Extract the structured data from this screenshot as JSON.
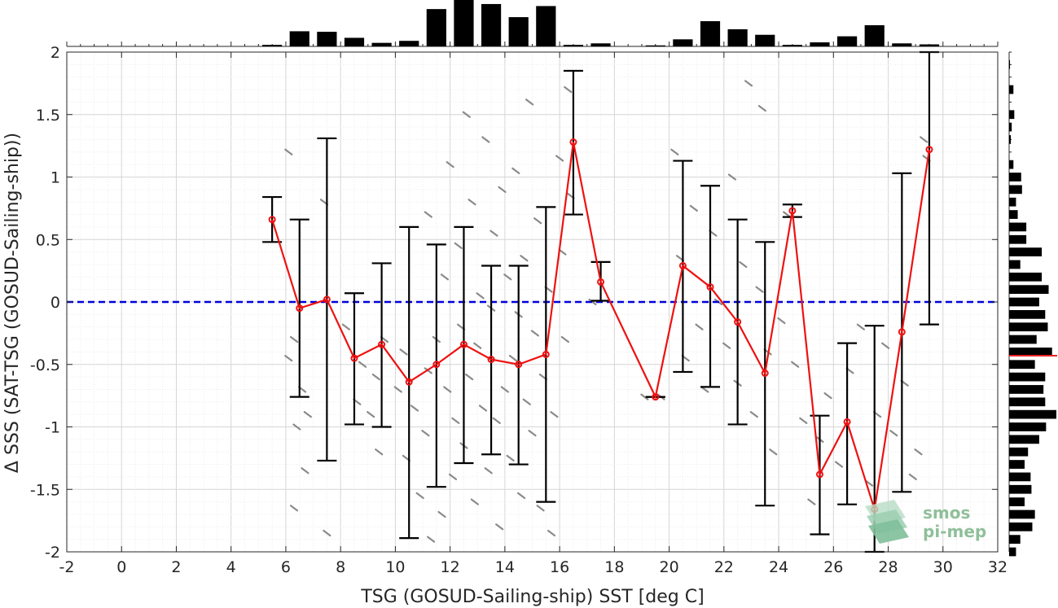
{
  "chart_data": {
    "type": "line",
    "xlabel": "TSG (GOSUD-Sailing-ship) SST [deg C]",
    "ylabel": "Δ SSS (SAT-TSG (GOSUD-Sailing-ship))",
    "xlim": [
      -2,
      32
    ],
    "ylim": [
      -2,
      2
    ],
    "xticks": [
      -2,
      0,
      2,
      4,
      6,
      8,
      10,
      12,
      14,
      16,
      18,
      20,
      22,
      24,
      26,
      28,
      30,
      32
    ],
    "yticks": [
      2,
      1.5,
      1,
      0.5,
      0,
      -0.5,
      -1,
      -1.5,
      -2
    ],
    "xtick_labels": [
      "-2",
      "0",
      "2",
      "4",
      "6",
      "8",
      "10",
      "12",
      "14",
      "16",
      "18",
      "20",
      "22",
      "24",
      "26",
      "28",
      "30",
      "32"
    ],
    "ytick_labels": [
      "2",
      "1.5",
      "1",
      "0.5",
      "0",
      "-0.5",
      "-1",
      "-1.5",
      "-2"
    ],
    "grid": true,
    "reference_line": {
      "y": 0,
      "style": "dashed",
      "color": "#0000dd"
    },
    "series": [
      {
        "color": "#ee1111",
        "x": [
          5.5,
          6.5,
          7.5,
          8.5,
          9.5,
          10.5,
          11.5,
          12.5,
          13.5,
          14.5,
          15.5,
          16.5,
          17.5,
          19.5,
          20.5,
          21.5,
          22.5,
          23.5,
          24.5,
          25.5,
          26.5,
          27.5,
          28.5,
          29.5
        ],
        "y": [
          0.66,
          -0.05,
          0.02,
          -0.45,
          -0.34,
          -0.64,
          -0.5,
          -0.34,
          -0.46,
          -0.5,
          -0.42,
          1.28,
          0.16,
          -0.76,
          0.29,
          0.12,
          -0.16,
          -0.57,
          0.73,
          -1.38,
          -0.96,
          -1.66,
          -0.24,
          1.22
        ],
        "err_low": [
          0.48,
          -0.76,
          -1.27,
          -0.98,
          -1.0,
          -1.89,
          -1.48,
          -1.29,
          -1.22,
          -1.3,
          -1.6,
          0.7,
          0.01,
          -0.76,
          -0.56,
          -0.68,
          -0.98,
          -1.63,
          0.68,
          -1.86,
          -1.62,
          -2.0,
          -1.52,
          -0.18
        ],
        "err_high": [
          0.84,
          0.66,
          1.31,
          0.07,
          0.31,
          0.6,
          0.46,
          0.6,
          0.29,
          0.29,
          0.76,
          1.85,
          0.32,
          -0.76,
          1.13,
          0.93,
          0.66,
          0.48,
          0.78,
          -0.91,
          -0.33,
          -0.19,
          1.03,
          2.0
        ]
      }
    ],
    "scatter_points": [
      [
        6.1,
        1.2
      ],
      [
        6.3,
        -0.3
      ],
      [
        6.1,
        -0.45
      ],
      [
        6.6,
        -0.7
      ],
      [
        6.8,
        -0.9
      ],
      [
        6.4,
        -1.0
      ],
      [
        6.7,
        -1.35
      ],
      [
        6.3,
        -1.65
      ],
      [
        7.4,
        0.8
      ],
      [
        7.5,
        -1.85
      ],
      [
        8.2,
        -0.2
      ],
      [
        8.6,
        -0.8
      ],
      [
        8.8,
        -0.5
      ],
      [
        9.1,
        -0.9
      ],
      [
        9.3,
        -0.6
      ],
      [
        9.4,
        -1.2
      ],
      [
        9.6,
        -0.3
      ],
      [
        10.1,
        -0.7
      ],
      [
        10.3,
        -0.4
      ],
      [
        10.4,
        -1.25
      ],
      [
        10.7,
        -0.85
      ],
      [
        10.9,
        -1.55
      ],
      [
        11.1,
        -1.05
      ],
      [
        11.2,
        -0.55
      ],
      [
        11.2,
        0.7
      ],
      [
        11.3,
        -1.9
      ],
      [
        11.5,
        -0.3
      ],
      [
        11.7,
        -1.7
      ],
      [
        11.8,
        0.2
      ],
      [
        11.9,
        -0.7
      ],
      [
        12.0,
        1.1
      ],
      [
        12.1,
        -1.4
      ],
      [
        12.2,
        -0.95
      ],
      [
        12.3,
        0.45
      ],
      [
        12.4,
        -0.2
      ],
      [
        12.5,
        -1.15
      ],
      [
        12.6,
        1.5
      ],
      [
        12.7,
        -0.6
      ],
      [
        12.8,
        0.8
      ],
      [
        12.9,
        -1.6
      ],
      [
        13.0,
        -0.35
      ],
      [
        13.1,
        0.05
      ],
      [
        13.2,
        -0.85
      ],
      [
        13.3,
        1.3
      ],
      [
        13.4,
        -1.35
      ],
      [
        13.5,
        -0.05
      ],
      [
        13.6,
        0.55
      ],
      [
        13.7,
        -0.95
      ],
      [
        13.8,
        -1.8
      ],
      [
        13.9,
        0.9
      ],
      [
        14.0,
        -0.7
      ],
      [
        14.1,
        0.2
      ],
      [
        14.2,
        -1.25
      ],
      [
        14.3,
        -0.45
      ],
      [
        14.4,
        1.05
      ],
      [
        14.5,
        -0.1
      ],
      [
        14.6,
        -1.55
      ],
      [
        14.7,
        0.35
      ],
      [
        14.8,
        -0.8
      ],
      [
        14.9,
        1.6
      ],
      [
        15.0,
        -1.05
      ],
      [
        15.1,
        -0.25
      ],
      [
        15.2,
        0.65
      ],
      [
        15.3,
        -1.65
      ],
      [
        15.4,
        -0.6
      ],
      [
        15.6,
        0.1
      ],
      [
        15.7,
        -1.85
      ],
      [
        15.8,
        -0.9
      ],
      [
        16.0,
        1.15
      ],
      [
        16.1,
        0.4
      ],
      [
        16.2,
        -0.3
      ],
      [
        16.3,
        1.7
      ],
      [
        16.4,
        0.85
      ],
      [
        17.2,
        0.0
      ],
      [
        19.1,
        -0.76
      ],
      [
        19.7,
        -0.76
      ],
      [
        20.2,
        1.2
      ],
      [
        20.4,
        0.35
      ],
      [
        20.6,
        -0.45
      ],
      [
        20.9,
        0.75
      ],
      [
        21.1,
        -0.2
      ],
      [
        21.3,
        -0.7
      ],
      [
        21.6,
        0.55
      ],
      [
        21.8,
        0.0
      ],
      [
        22.1,
        -0.35
      ],
      [
        22.3,
        1.0
      ],
      [
        22.5,
        -0.65
      ],
      [
        22.7,
        0.3
      ],
      [
        22.9,
        1.75
      ],
      [
        23.1,
        -0.9
      ],
      [
        23.3,
        0.1
      ],
      [
        23.4,
        1.55
      ],
      [
        23.6,
        -0.4
      ],
      [
        23.8,
        -1.2
      ],
      [
        24.1,
        -0.15
      ],
      [
        24.3,
        0.7
      ],
      [
        24.6,
        -0.5
      ],
      [
        24.9,
        -0.95
      ],
      [
        25.2,
        -1.6
      ],
      [
        25.5,
        -1.1
      ],
      [
        25.8,
        -0.75
      ],
      [
        26.2,
        -1.3
      ],
      [
        26.6,
        -0.55
      ],
      [
        27.0,
        -0.2
      ],
      [
        27.3,
        -1.45
      ],
      [
        27.6,
        -0.9
      ],
      [
        27.9,
        -0.35
      ],
      [
        28.2,
        -1.05
      ],
      [
        28.6,
        -0.65
      ],
      [
        28.9,
        -1.4
      ],
      [
        29.1,
        -1.2
      ],
      [
        29.3,
        1.3
      ],
      [
        29.4,
        1.15
      ]
    ],
    "top_histogram": {
      "bin_centers": [
        5.5,
        6.5,
        7.5,
        8.5,
        9.5,
        10.5,
        11.5,
        12.5,
        13.5,
        14.5,
        15.5,
        16.5,
        17.5,
        19.5,
        20.5,
        21.5,
        22.5,
        23.5,
        24.5,
        25.5,
        26.5,
        27.5,
        28.5,
        29.5
      ],
      "counts": [
        3,
        30,
        29,
        17,
        7,
        11,
        74,
        92,
        84,
        58,
        80,
        3,
        6,
        2,
        14,
        50,
        34,
        23,
        3,
        8,
        20,
        42,
        6,
        4
      ]
    },
    "right_histogram": {
      "bin_centers": [
        1.9,
        1.7,
        1.5,
        1.4,
        1.3,
        1.1,
        1.0,
        0.9,
        0.8,
        0.7,
        0.6,
        0.5,
        0.4,
        0.3,
        0.2,
        0.1,
        0.0,
        -0.1,
        -0.2,
        -0.3,
        -0.4,
        -0.5,
        -0.6,
        -0.7,
        -0.8,
        -0.9,
        -1.0,
        -1.1,
        -1.2,
        -1.3,
        -1.4,
        -1.5,
        -1.6,
        -1.7,
        -1.8,
        -1.9,
        -2.0
      ],
      "counts": [
        1,
        5,
        6,
        3,
        2,
        5,
        14,
        15,
        8,
        10,
        20,
        20,
        38,
        13,
        38,
        46,
        35,
        42,
        45,
        32,
        50,
        30,
        42,
        40,
        42,
        55,
        43,
        35,
        22,
        18,
        25,
        26,
        18,
        30,
        27,
        13,
        8
      ],
      "mean": -0.43,
      "mean_color": "#ee2222"
    }
  },
  "logo": {
    "line1": "smos",
    "line2": "pi-mep"
  }
}
